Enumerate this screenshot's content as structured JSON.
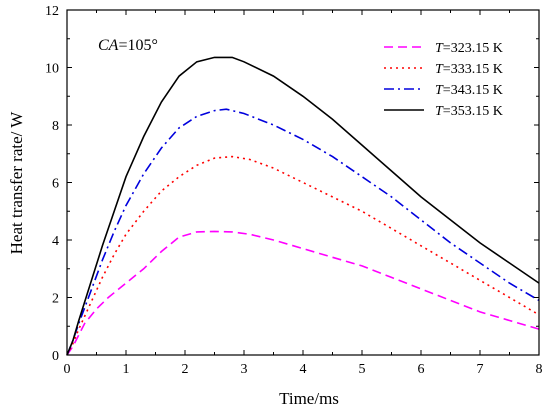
{
  "chart_data": {
    "type": "line",
    "xlabel": "Time/ms",
    "ylabel": "Heat transfer rate/ W",
    "xlim": [
      0,
      8
    ],
    "ylim": [
      0,
      12
    ],
    "xticks": [
      0,
      1,
      2,
      3,
      4,
      5,
      6,
      7,
      8
    ],
    "yticks": [
      0,
      2,
      4,
      6,
      8,
      10,
      12
    ],
    "grid": false,
    "legend_position": "top-right",
    "annotation": {
      "italic": "CA",
      "rest": "=105°"
    },
    "series": [
      {
        "name_italic": "T",
        "name_rest": "=323.15 K",
        "color": "#ff00ff",
        "dash": "9,5",
        "x": [
          0,
          0.1,
          0.2,
          0.3,
          0.5,
          0.7,
          1.0,
          1.3,
          1.6,
          1.9,
          2.2,
          2.5,
          2.8,
          3.1,
          3.5,
          4.0,
          4.5,
          5.0,
          5.5,
          6.0,
          6.5,
          7.0,
          7.5,
          8.0
        ],
        "y": [
          0,
          0.3,
          0.7,
          1.1,
          1.6,
          2.0,
          2.5,
          3.0,
          3.6,
          4.1,
          4.28,
          4.3,
          4.28,
          4.2,
          4.0,
          3.7,
          3.4,
          3.1,
          2.7,
          2.3,
          1.9,
          1.5,
          1.2,
          0.9
        ]
      },
      {
        "name_italic": "T",
        "name_rest": "=333.15 K",
        "color": "#ff0000",
        "dash": "2,4",
        "x": [
          0,
          0.1,
          0.2,
          0.4,
          0.6,
          0.8,
          1.0,
          1.3,
          1.6,
          1.9,
          2.2,
          2.5,
          2.8,
          3.1,
          3.5,
          4.0,
          4.5,
          5.0,
          5.5,
          6.0,
          6.5,
          7.0,
          7.5,
          8.0
        ],
        "y": [
          0,
          0.4,
          0.9,
          1.8,
          2.7,
          3.5,
          4.2,
          5.0,
          5.7,
          6.2,
          6.6,
          6.85,
          6.9,
          6.8,
          6.5,
          6.0,
          5.5,
          5.0,
          4.4,
          3.8,
          3.2,
          2.6,
          2.0,
          1.4
        ]
      },
      {
        "name_italic": "T",
        "name_rest": "=343.15 K",
        "color": "#0000dd",
        "dash": "10,4,2,4",
        "x": [
          0,
          0.1,
          0.2,
          0.4,
          0.6,
          0.8,
          1.0,
          1.3,
          1.6,
          1.9,
          2.2,
          2.5,
          2.7,
          3.0,
          3.5,
          4.0,
          4.5,
          5.0,
          5.5,
          6.0,
          6.5,
          7.0,
          7.5,
          8.0
        ],
        "y": [
          0,
          0.5,
          1.1,
          2.2,
          3.3,
          4.3,
          5.2,
          6.3,
          7.2,
          7.9,
          8.3,
          8.5,
          8.55,
          8.4,
          8.0,
          7.5,
          6.9,
          6.2,
          5.5,
          4.7,
          3.9,
          3.2,
          2.5,
          1.9
        ]
      },
      {
        "name_italic": "T",
        "name_rest": "=353.15 K",
        "color": "#000000",
        "dash": "",
        "x": [
          0,
          0.1,
          0.2,
          0.4,
          0.6,
          0.8,
          1.0,
          1.3,
          1.6,
          1.9,
          2.2,
          2.5,
          2.8,
          3.0,
          3.5,
          4.0,
          4.5,
          5.0,
          5.5,
          6.0,
          6.5,
          7.0,
          7.5,
          8.0
        ],
        "y": [
          0,
          0.5,
          1.2,
          2.5,
          3.8,
          5.0,
          6.2,
          7.6,
          8.8,
          9.7,
          10.2,
          10.35,
          10.35,
          10.2,
          9.7,
          9.0,
          8.2,
          7.3,
          6.4,
          5.5,
          4.7,
          3.9,
          3.2,
          2.5
        ]
      }
    ]
  }
}
